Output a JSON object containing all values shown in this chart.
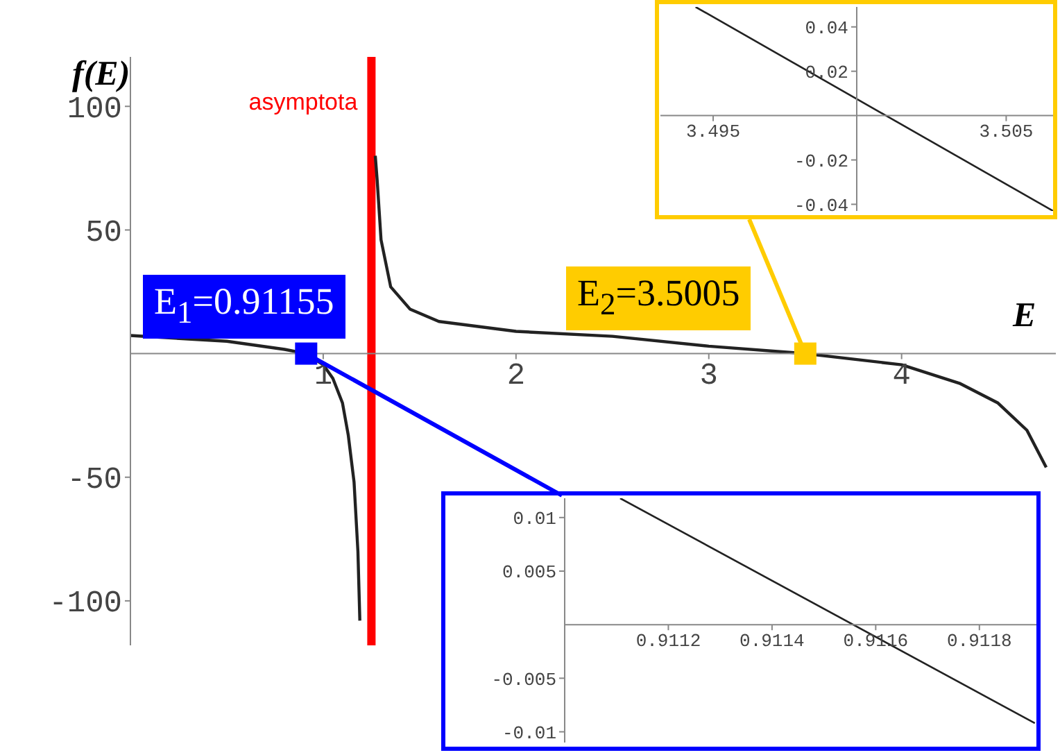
{
  "chart_data": [
    {
      "type": "line",
      "xlabel": "E",
      "ylabel": "f(E)",
      "xlim": [
        0,
        4.8
      ],
      "ylim": [
        -118,
        120
      ],
      "xticks": [
        1,
        2,
        3,
        4
      ],
      "yticks": [
        -100,
        -50,
        50,
        100
      ],
      "series": [
        {
          "color": "#222222",
          "x": [
            0,
            0.5,
            0.8,
            0.91155,
            1.0,
            1.05,
            1.1,
            1.13,
            1.16,
            1.18,
            1.19
          ],
          "values": [
            7.3,
            5,
            1.7,
            0,
            -4.5,
            -10,
            -20,
            -33,
            -52,
            -80,
            -108
          ]
        },
        {
          "color": "#222222",
          "x": [
            1.27,
            1.28,
            1.3,
            1.35,
            1.45,
            1.6,
            2,
            2.5,
            3,
            3.5005,
            4,
            4.3,
            4.5,
            4.65,
            4.75
          ],
          "values": [
            80,
            70,
            46,
            27,
            18,
            13,
            9,
            7,
            3,
            0,
            -4.5,
            -12,
            -20,
            -31,
            -46
          ]
        }
      ],
      "ref_lines": [
        {
          "axis": "x",
          "value": 1.25,
          "label": "asymptota",
          "color": "#ff0000"
        }
      ],
      "annotations": [
        {
          "text": "E$_{1}$=0.91155",
          "x": 0.91155,
          "y": 0
        },
        {
          "text": "E$_{2}$=3.5005",
          "x": 3.5005,
          "y": 0
        }
      ]
    },
    {
      "type": "line",
      "xlim": [
        3.4932,
        3.5066
      ],
      "ylim": [
        -0.043,
        0.049
      ],
      "xticks": [
        3.495,
        3.505
      ],
      "yticks": [
        -0.04,
        -0.02,
        0.02,
        0.04
      ],
      "series": [
        {
          "color": "#222222",
          "x": [
            3.4944,
            3.5066
          ],
          "values": [
            0.049,
            -0.043
          ]
        }
      ]
    },
    {
      "type": "line",
      "xlim": [
        0.911,
        0.91191
      ],
      "ylim": [
        -0.011,
        0.0118
      ],
      "xticks": [
        0.9112,
        0.9114,
        0.9116,
        0.9118
      ],
      "yticks": [
        -0.01,
        -0.005,
        0.005,
        0.01
      ],
      "series": [
        {
          "color": "#222222",
          "x": [
            0.911107,
            0.911907
          ],
          "values": [
            0.0118,
            -0.0092
          ]
        }
      ]
    }
  ]
}
